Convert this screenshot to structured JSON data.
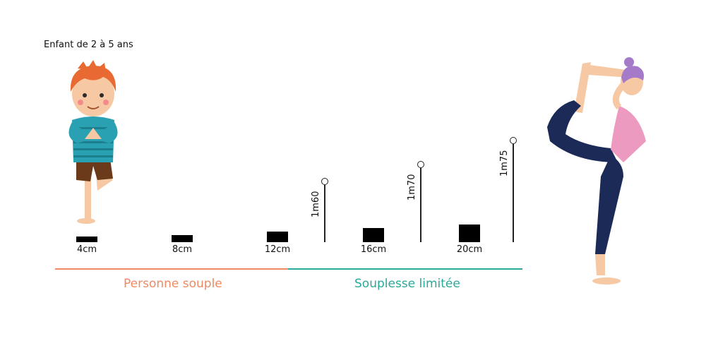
{
  "caption": "Enfant de 2 à 5 ans",
  "blocks": [
    {
      "label": "4cm",
      "cm": 4
    },
    {
      "label": "8cm",
      "cm": 8
    },
    {
      "label": "12cm",
      "cm": 12
    },
    {
      "label": "16cm",
      "cm": 16
    },
    {
      "label": "20cm",
      "cm": 20
    }
  ],
  "height_markers": [
    {
      "label": "1m60"
    },
    {
      "label": "1m70"
    },
    {
      "label": "1m75"
    }
  ],
  "zones": [
    {
      "label": "Personne souple",
      "color": "#f08a62"
    },
    {
      "label": "Souplesse limitée",
      "color": "#2aa89a"
    }
  ],
  "illustrations": {
    "child": "child-tree-pose-illustration",
    "woman": "woman-dancer-pose-illustration"
  }
}
